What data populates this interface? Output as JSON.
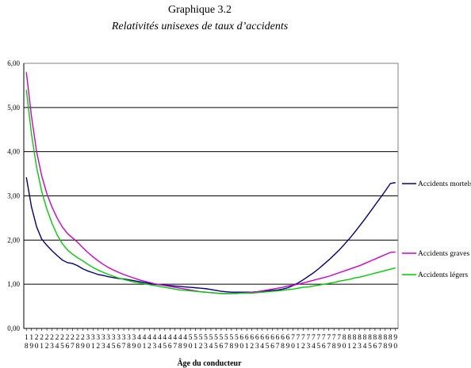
{
  "chart_data": {
    "type": "line",
    "title": "Graphique 3.2",
    "subtitle": "Relativités unisexes de taux d’accidents",
    "xlabel": "Âge du conducteur",
    "ylabel": "",
    "ylim": [
      0,
      6
    ],
    "yticks": [
      "0,00",
      "1,00",
      "2,00",
      "3,00",
      "4,00",
      "5,00",
      "6,00"
    ],
    "grid": true,
    "legend_position": "right",
    "x": [
      18,
      19,
      20,
      21,
      22,
      23,
      24,
      25,
      26,
      27,
      28,
      29,
      30,
      31,
      32,
      33,
      34,
      35,
      36,
      37,
      38,
      39,
      40,
      41,
      42,
      43,
      44,
      45,
      46,
      47,
      48,
      49,
      50,
      51,
      52,
      53,
      54,
      55,
      56,
      57,
      58,
      59,
      60,
      61,
      62,
      63,
      64,
      65,
      66,
      67,
      68,
      69,
      70,
      71,
      72,
      73,
      74,
      75,
      76,
      77,
      78,
      79,
      80,
      81,
      82,
      83,
      84,
      85,
      86,
      87,
      88,
      89,
      90
    ],
    "series": [
      {
        "name": "Accidents mortels",
        "color": "#000080",
        "values": [
          3.42,
          2.75,
          2.3,
          2.02,
          1.88,
          1.76,
          1.65,
          1.55,
          1.49,
          1.47,
          1.42,
          1.35,
          1.3,
          1.26,
          1.22,
          1.2,
          1.17,
          1.15,
          1.13,
          1.12,
          1.1,
          1.08,
          1.06,
          1.04,
          1.02,
          1.0,
          0.99,
          0.98,
          0.97,
          0.96,
          0.95,
          0.94,
          0.93,
          0.92,
          0.91,
          0.9,
          0.88,
          0.86,
          0.84,
          0.83,
          0.82,
          0.82,
          0.82,
          0.82,
          0.82,
          0.83,
          0.84,
          0.85,
          0.86,
          0.87,
          0.89,
          0.92,
          0.97,
          1.03,
          1.1,
          1.18,
          1.26,
          1.35,
          1.45,
          1.55,
          1.66,
          1.77,
          1.9,
          2.03,
          2.17,
          2.32,
          2.47,
          2.63,
          2.79,
          2.95,
          3.11,
          3.28,
          3.3
        ]
      },
      {
        "name": "Accidents graves",
        "color": "#cc00cc",
        "values": [
          5.8,
          4.8,
          4.0,
          3.45,
          3.05,
          2.75,
          2.5,
          2.3,
          2.15,
          2.05,
          1.95,
          1.83,
          1.72,
          1.62,
          1.53,
          1.45,
          1.38,
          1.32,
          1.27,
          1.22,
          1.18,
          1.14,
          1.1,
          1.07,
          1.04,
          1.01,
          0.99,
          0.97,
          0.95,
          0.93,
          0.91,
          0.89,
          0.87,
          0.85,
          0.83,
          0.82,
          0.81,
          0.8,
          0.79,
          0.79,
          0.79,
          0.8,
          0.8,
          0.81,
          0.82,
          0.83,
          0.85,
          0.87,
          0.89,
          0.91,
          0.93,
          0.96,
          0.98,
          1.0,
          1.03,
          1.06,
          1.09,
          1.12,
          1.15,
          1.18,
          1.22,
          1.26,
          1.3,
          1.34,
          1.38,
          1.42,
          1.47,
          1.52,
          1.57,
          1.62,
          1.67,
          1.72,
          1.73
        ]
      },
      {
        "name": "Accidents légers",
        "color": "#00cc00",
        "values": [
          5.4,
          4.4,
          3.65,
          3.1,
          2.7,
          2.38,
          2.12,
          1.92,
          1.78,
          1.68,
          1.6,
          1.53,
          1.45,
          1.38,
          1.32,
          1.27,
          1.22,
          1.18,
          1.14,
          1.11,
          1.08,
          1.05,
          1.03,
          1.01,
          0.99,
          0.97,
          0.95,
          0.93,
          0.91,
          0.89,
          0.87,
          0.86,
          0.85,
          0.84,
          0.83,
          0.82,
          0.81,
          0.8,
          0.79,
          0.79,
          0.79,
          0.79,
          0.8,
          0.8,
          0.8,
          0.81,
          0.82,
          0.83,
          0.84,
          0.85,
          0.86,
          0.88,
          0.89,
          0.91,
          0.93,
          0.94,
          0.96,
          0.98,
          1.0,
          1.02,
          1.04,
          1.07,
          1.09,
          1.11,
          1.14,
          1.16,
          1.19,
          1.22,
          1.25,
          1.28,
          1.31,
          1.34,
          1.37
        ]
      }
    ]
  }
}
